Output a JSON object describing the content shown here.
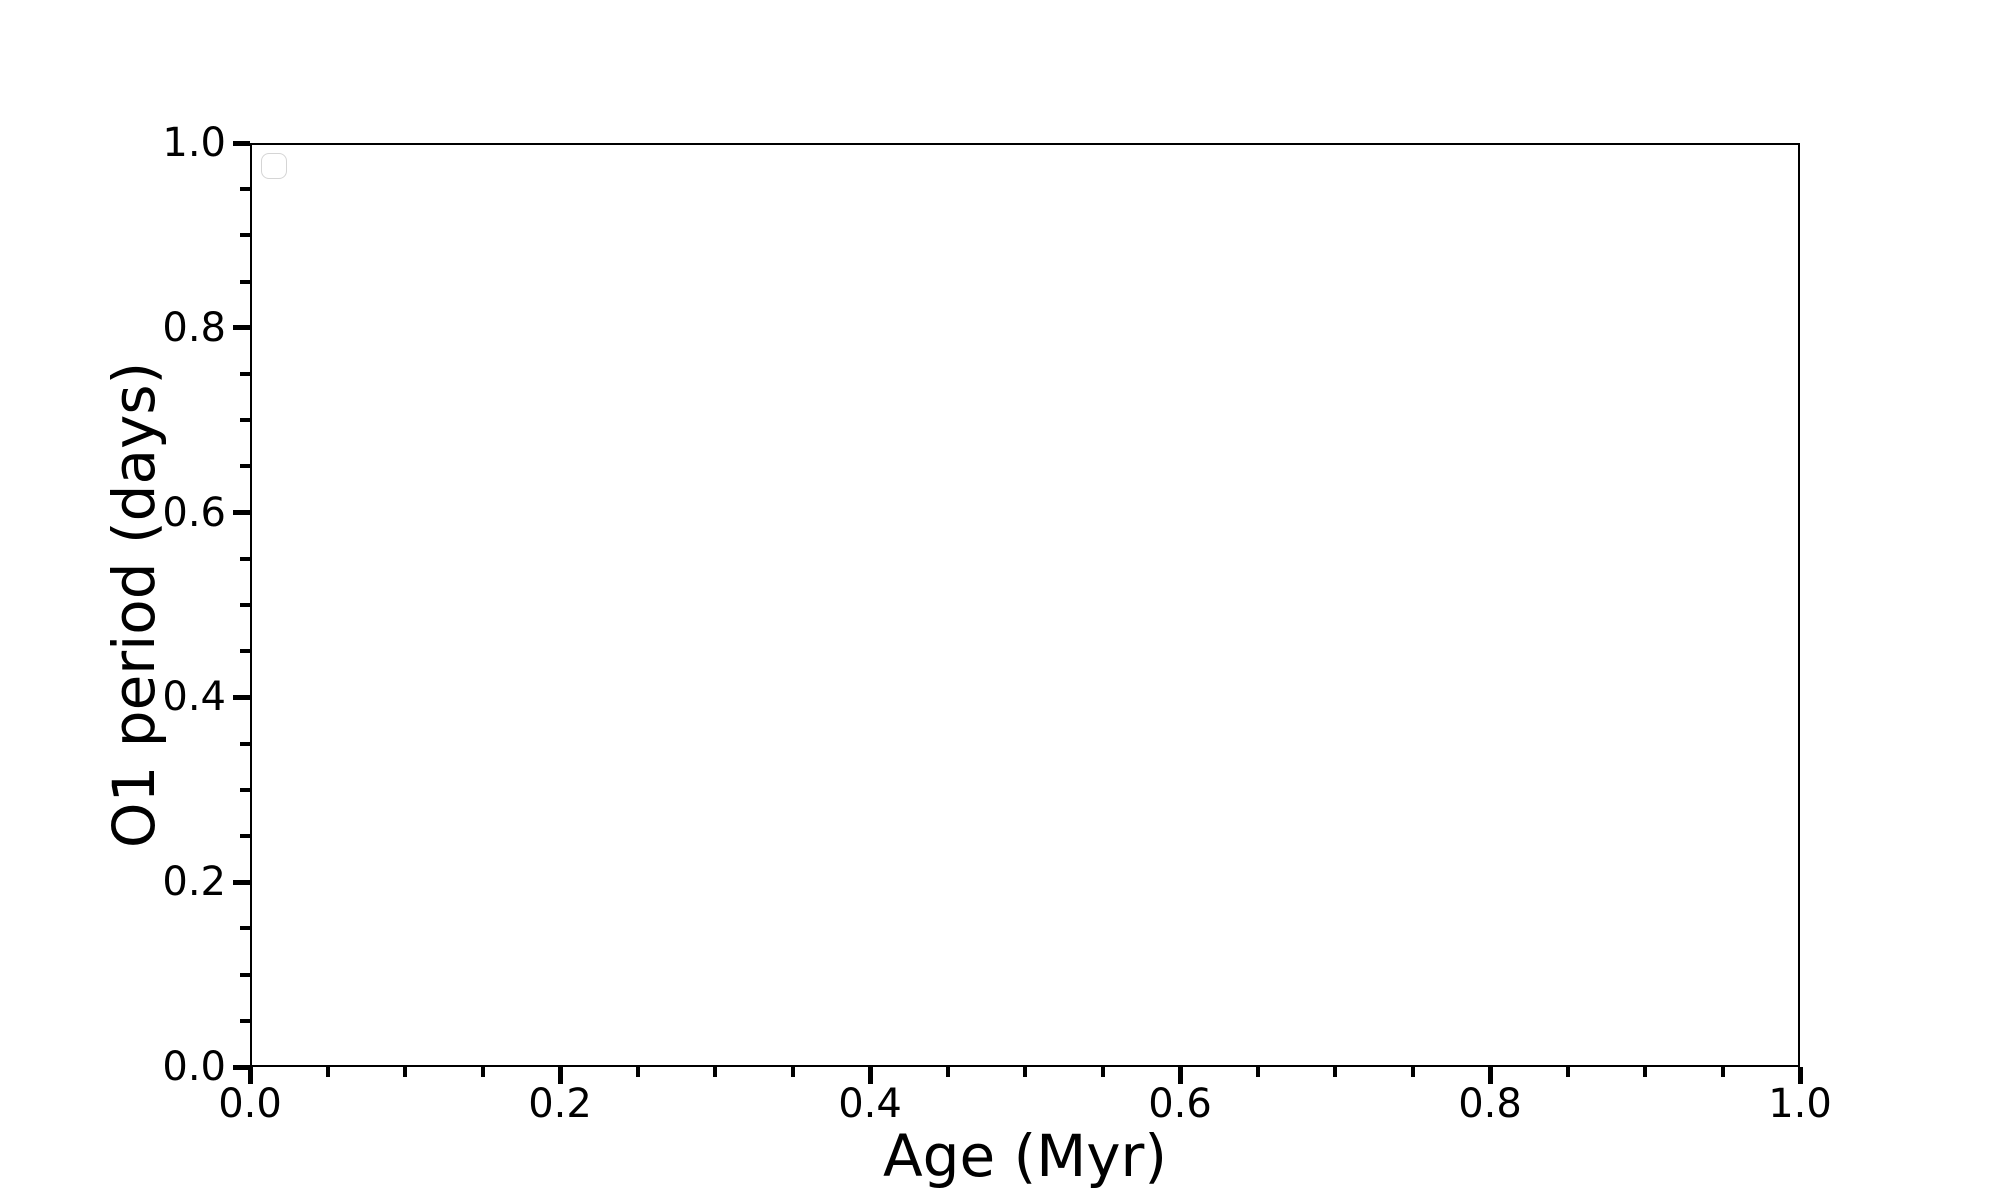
{
  "chart_data": {
    "type": "scatter",
    "title": "",
    "xlabel": "Age (Myr)",
    "ylabel": "O1 period (days)",
    "xlim": [
      0.0,
      1.0
    ],
    "ylim": [
      0.0,
      1.0
    ],
    "x_ticks": [
      "0.0",
      "0.2",
      "0.4",
      "0.6",
      "0.8",
      "1.0"
    ],
    "y_ticks": [
      "0.0",
      "0.2",
      "0.4",
      "0.6",
      "0.8",
      "1.0"
    ],
    "minor_ticks_per_interval": 3,
    "minor_tick_interval": 0.05,
    "grid": false,
    "legend": {
      "visible": true,
      "position": "upper-left",
      "entries": []
    },
    "series": []
  },
  "colors": {
    "background": "#ffffff",
    "axis": "#000000",
    "text": "#000000",
    "legend_border": "#d5d5d5"
  }
}
